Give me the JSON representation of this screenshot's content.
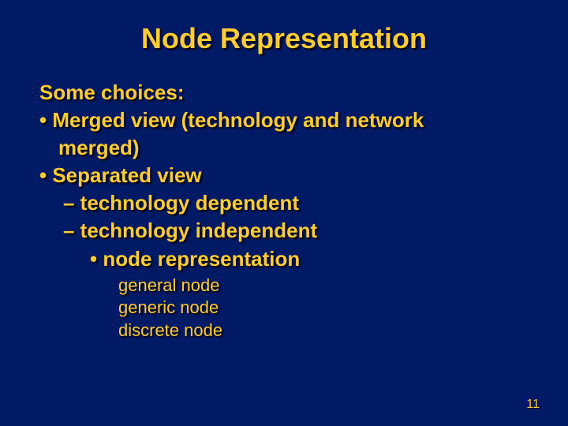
{
  "slide": {
    "title": "Node Representation",
    "intro": "Some choices:",
    "bullet1_line1": "• Merged view (technology and network",
    "bullet1_line2": "merged)",
    "bullet2": "• Separated view",
    "sub1": "– technology dependent",
    "sub2": "– technology  independent",
    "subsub": "• node representation",
    "item1": "general node",
    "item2": "generic node",
    "item3": "discrete node",
    "page_number": "11"
  },
  "style": {
    "background_color": "#001a66",
    "text_color": "#ffcc33",
    "title_fontsize": 36,
    "body_fontsize": 26,
    "sublist_fontsize": 22,
    "pagenum_fontsize": 16,
    "shadow_color": "#000000",
    "font_family": "Comic Sans MS"
  }
}
